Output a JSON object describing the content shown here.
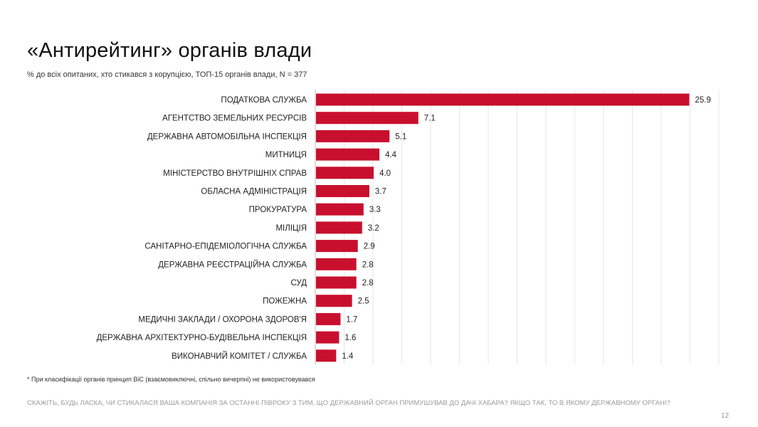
{
  "title": "«Антирейтинг» органів влади",
  "subtitle": "% до всіх опитаних, хто стикався з корупцією, ТОП-15 органів влади, N = 377",
  "footnote": "* При класифікації органів принцип ВіС (взаємовиключні, спільно вичерпні) не використовувався",
  "question": "СКАЖІТЬ, БУДЬ ЛАСКА, ЧИ СТИКАЛАСЯ ВАША КОМПАНІЯ ЗА ОСТАННІ ПІВРОКУ З ТИМ, ЩО ДЕРЖАВНИЙ ОРГАН ПРИМУШУВАВ ДО ДАЧІ ХАБАРА? ЯКЩО ТАК, ТО В ЯКОМУ ДЕРЖАВНОМУ ОРГАНІ?",
  "page_number": "12",
  "colors": {
    "bar": "#c8102e",
    "grid": "#e6e6e6",
    "axis": "#bbbbbb"
  },
  "chart_data": {
    "type": "bar",
    "orientation": "horizontal",
    "title": "«Антирейтинг» органів влади",
    "xlabel": "",
    "ylabel": "",
    "xlim": [
      0,
      28
    ],
    "grid": true,
    "categories": [
      "ПОДАТКОВА СЛУЖБА",
      "АГЕНТСТВО ЗЕМЕЛЬНИХ РЕСУРСІВ",
      "ДЕРЖАВНА АВТОМОБІЛЬНА ІНСПЕКЦІЯ",
      "МИТНИЦЯ",
      "МІНІСТЕРСТВО ВНУТРІШНІХ СПРАВ",
      "ОБЛАСНА АДМІНІСТРАЦІЯ",
      "ПРОКУРАТУРА",
      "МІЛІЦІЯ",
      "САНІТАРНО-ЕПІДЕМІОЛОГІЧНА СЛУЖБА",
      "ДЕРЖАВНА РЕЄСТРАЦІЙНА СЛУЖБА",
      "СУД",
      "ПОЖЕЖНА",
      "МЕДИЧНІ ЗАКЛАДИ / ОХОРОНА ЗДОРОВ'Я",
      "ДЕРЖАВНА АРХІТЕКТУРНО-БУДІВЕЛЬНА ІНСПЕКЦІЯ",
      "ВИКОНАВЧИЙ КОМІТЕТ / СЛУЖБА"
    ],
    "values": [
      25.9,
      7.1,
      5.1,
      4.4,
      4.0,
      3.7,
      3.3,
      3.2,
      2.9,
      2.8,
      2.8,
      2.5,
      1.7,
      1.6,
      1.4
    ],
    "value_labels": [
      "25.9",
      "7.1",
      "5.1",
      "4.4",
      "4.0",
      "3.7",
      "3.3",
      "3.2",
      "2.9",
      "2.8",
      "2.8",
      "2.5",
      "1.7",
      "1.6",
      "1.4"
    ]
  }
}
